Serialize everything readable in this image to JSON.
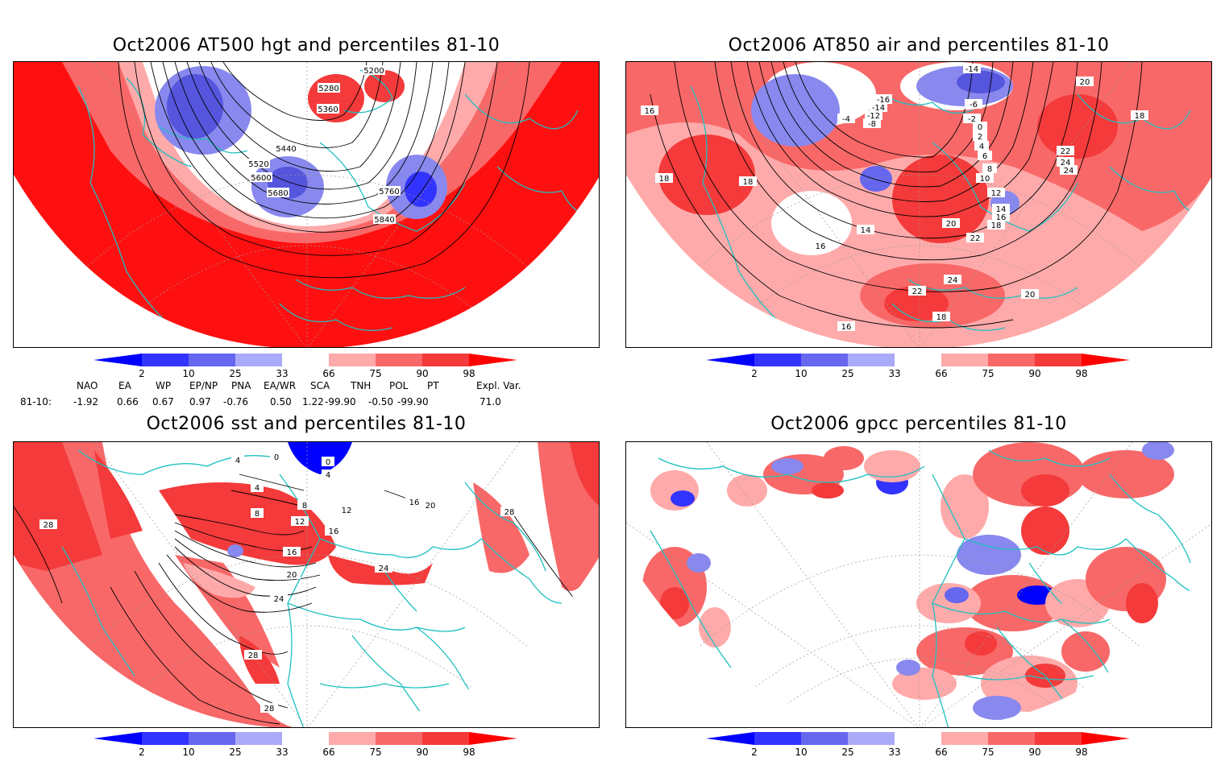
{
  "panels": [
    {
      "id": "hgt500",
      "title": "Oct2006 AT500 hgt and percentiles 81-10",
      "contour_labels": [
        "5200",
        "5280",
        "5360",
        "5440",
        "5520",
        "5600",
        "5680",
        "5760",
        "5840"
      ]
    },
    {
      "id": "air850",
      "title": "Oct2006 AT850 air and percentiles 81-10",
      "contour_labels": [
        "-14",
        "-16",
        "-14",
        "-12",
        "-8",
        "-6",
        "-4",
        "-2",
        "0",
        "2",
        "4",
        "6",
        "8",
        "10",
        "12",
        "14",
        "16",
        "18",
        "20",
        "22",
        "24",
        "16",
        "18",
        "18",
        "14",
        "16",
        "20",
        "22",
        "24",
        "18",
        "20",
        "22",
        "24",
        "18",
        "16"
      ]
    },
    {
      "id": "sst",
      "title": "Oct2006 sst and percentiles 81-10",
      "contour_labels": [
        "0",
        "4",
        "4",
        "8",
        "12",
        "16",
        "20",
        "24",
        "28",
        "28",
        "28",
        "8",
        "12",
        "16",
        "24",
        "28",
        "16",
        "20",
        "4",
        "0"
      ]
    },
    {
      "id": "gpcc",
      "title": "Oct2006 gpcc percentiles 81-10",
      "contour_labels": []
    }
  ],
  "colorbar": {
    "ticks": [
      "2",
      "10",
      "25",
      "33",
      "66",
      "75",
      "90",
      "98"
    ],
    "colors": {
      "blue_tip": "#0000ff",
      "blue_1": "#3333ff",
      "blue_2": "#6666ee",
      "blue_3": "#aaaaf8",
      "white": "#ffffff",
      "red_1": "#ffaaaa",
      "red_2": "#f86868",
      "red_3": "#f43a3a",
      "red_tip": "#ff0000"
    }
  },
  "teleconnections": {
    "headers": [
      "NAO",
      "EA",
      "WP",
      "EP/NP",
      "PNA",
      "EA/WR",
      "SCA",
      "TNH",
      "POL",
      "PT",
      "Expl. Var."
    ],
    "row_label": "81-10:",
    "values": [
      "-1.92",
      "0.66",
      "0.67",
      "0.97",
      "-0.76",
      "0.50",
      "1.22",
      "-99.90",
      "-0.50",
      "-99.90",
      "71.0"
    ]
  },
  "map_colors": {
    "coast": "#1ec0c0",
    "grid": "#9a9a9a",
    "contour": "#000000"
  }
}
